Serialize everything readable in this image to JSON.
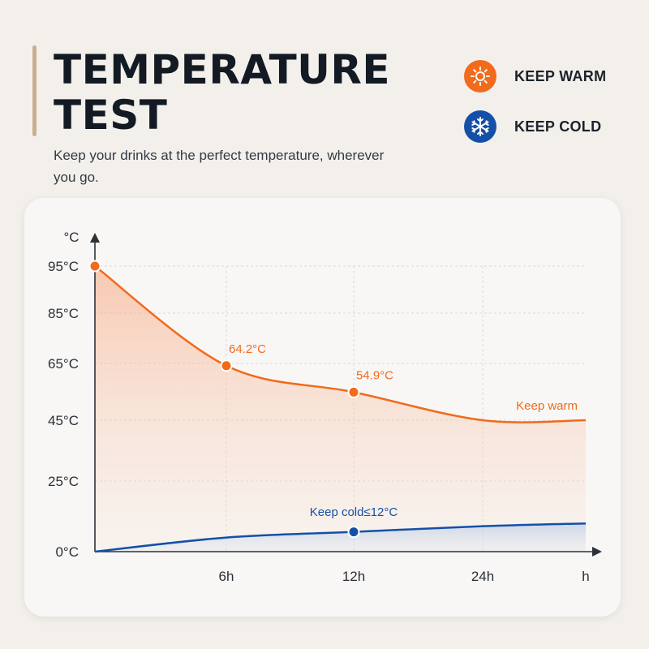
{
  "header": {
    "title_line1": "TEMPERATURE",
    "title_line2": "TEST",
    "subtitle": "Keep your drinks at the perfect temperature, wherever you go."
  },
  "legend": [
    {
      "label": "KEEP WARM",
      "icon": "sun-icon",
      "color": "#f26a1b"
    },
    {
      "label": "KEEP COLD",
      "icon": "snowflake-icon",
      "color": "#1450a8"
    }
  ],
  "chart_data": {
    "type": "line",
    "ylabel": "°C",
    "xlabel": "h",
    "x_ticks": [
      "6h",
      "12h",
      "24h"
    ],
    "y_ticks": [
      "95°C",
      "85°C",
      "65°C",
      "45°C",
      "25°C",
      "0°C"
    ],
    "grid": true,
    "series": [
      {
        "name": "Keep warm",
        "color": "#f26a1b",
        "points": [
          {
            "x": "0h",
            "y": 95
          },
          {
            "x": "6h",
            "y": 64.2,
            "label": "64.2°C"
          },
          {
            "x": "12h",
            "y": 54.9,
            "label": "54.9°C"
          },
          {
            "x": "24h",
            "y": 45
          },
          {
            "x": "end",
            "y": 45
          }
        ]
      },
      {
        "name": "Keep cold≤12°C",
        "color": "#1450a8",
        "points": [
          {
            "x": "0h",
            "y": 0
          },
          {
            "x": "6h",
            "y": 5
          },
          {
            "x": "12h",
            "y": 7
          },
          {
            "x": "24h",
            "y": 9
          },
          {
            "x": "end",
            "y": 10
          }
        ]
      }
    ]
  }
}
